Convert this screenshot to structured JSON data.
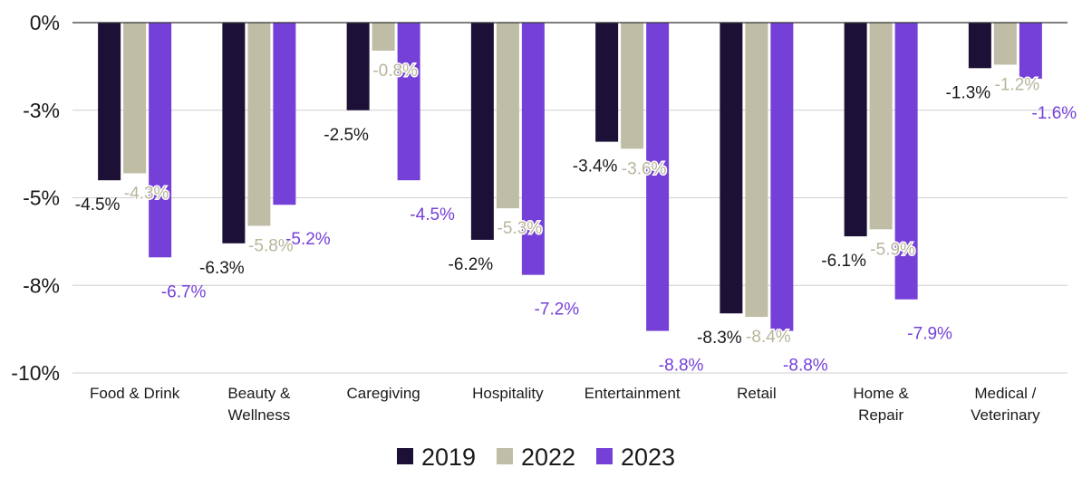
{
  "chart_data": {
    "type": "bar",
    "title": "",
    "xlabel": "",
    "ylabel": "",
    "ylim": [
      -10,
      0
    ],
    "yticks": [
      0,
      -2.5,
      -5,
      -7.5,
      -10
    ],
    "ytick_labels": [
      "0%",
      "-3%",
      "-5%",
      "-8%",
      "-10%"
    ],
    "grid": true,
    "legend_position": "bottom-center",
    "categories": [
      [
        "Food & Drink"
      ],
      [
        "Beauty &",
        "Wellness"
      ],
      [
        "Caregiving"
      ],
      [
        "Hospitality"
      ],
      [
        "Entertainment"
      ],
      [
        "Retail"
      ],
      [
        "Home &",
        "Repair"
      ],
      [
        "Medical /",
        "Veterinary"
      ]
    ],
    "series": [
      {
        "name": "2019",
        "color": "#1c1036",
        "label_color": "#1a1a1a",
        "values": [
          -4.5,
          -6.3,
          -2.5,
          -6.2,
          -3.4,
          -8.3,
          -6.1,
          -1.3
        ],
        "labels": [
          "-4.5%",
          "-6.3%",
          "-2.5%",
          "-6.2%",
          "-3.4%",
          "-8.3%",
          "-6.1%",
          "-1.3%"
        ]
      },
      {
        "name": "2022",
        "color": "#bfbda6",
        "label_color": "#b8b59c",
        "values": [
          -4.3,
          -5.8,
          -0.8,
          -5.3,
          -3.6,
          -8.4,
          -5.9,
          -1.2
        ],
        "labels": [
          "-4.3%",
          "-5.8%",
          "-0.8%",
          "-5.3%",
          "-3.6%",
          "-8.4%",
          "-5.9%",
          "-1.2%"
        ]
      },
      {
        "name": "2023",
        "color": "#7540d8",
        "label_color": "#7540d8",
        "values": [
          -6.7,
          -5.2,
          -4.5,
          -7.2,
          -8.8,
          -8.8,
          -7.9,
          -1.6
        ],
        "labels": [
          "-6.7%",
          "-5.2%",
          "-4.5%",
          "-7.2%",
          "-8.8%",
          "-8.8%",
          "-7.9%",
          "-1.6%"
        ]
      }
    ]
  }
}
